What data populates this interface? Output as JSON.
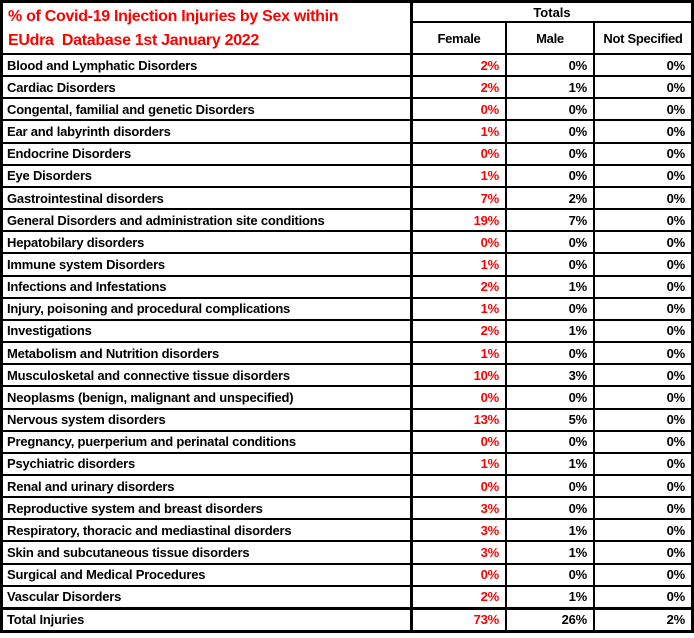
{
  "header": {
    "title_line1": "% of Covid-19 Injection Injuries by Sex within",
    "title_line2": "EUdra  Database 1st January 2022",
    "totals_label": "Totals",
    "columns": [
      "Female",
      "Male",
      "Not Specified"
    ]
  },
  "colors": {
    "title_red": "#FF0000",
    "female_value_red": "#FF0000",
    "border_black": "#000000",
    "background": "#FFFFFF"
  },
  "chart_data": {
    "type": "table",
    "title": "% of Covid-19 Injection Injuries by Sex within EUdra  Database 1st January 2022",
    "column_group_header": "Totals",
    "columns": [
      "Female",
      "Male",
      "Not Specified"
    ],
    "rows": [
      [
        "Blood and Lymphatic Disorders",
        "2%",
        "0%",
        "0%"
      ],
      [
        "Cardiac Disorders",
        "2%",
        "1%",
        "0%"
      ],
      [
        "Congental, familial and genetic Disorders",
        "0%",
        "0%",
        "0%"
      ],
      [
        "Ear and labyrinth disorders",
        "1%",
        "0%",
        "0%"
      ],
      [
        "Endocrine Disorders",
        "0%",
        "0%",
        "0%"
      ],
      [
        "Eye Disorders",
        "1%",
        "0%",
        "0%"
      ],
      [
        "Gastrointestinal disorders",
        "7%",
        "2%",
        "0%"
      ],
      [
        "General Disorders and administration site conditions",
        "19%",
        "7%",
        "0%"
      ],
      [
        "Hepatobilary disorders",
        "0%",
        "0%",
        "0%"
      ],
      [
        "Immune system Disorders",
        "1%",
        "0%",
        "0%"
      ],
      [
        "Infections and Infestations",
        "2%",
        "1%",
        "0%"
      ],
      [
        "Injury, poisoning and procedural complications",
        "1%",
        "0%",
        "0%"
      ],
      [
        "Investigations",
        "2%",
        "1%",
        "0%"
      ],
      [
        "Metabolism and Nutrition disorders",
        "1%",
        "0%",
        "0%"
      ],
      [
        "Musculosketal and connective tissue disorders",
        "10%",
        "3%",
        "0%"
      ],
      [
        "Neoplasms (benign, malignant and unspecified)",
        "0%",
        "0%",
        "0%"
      ],
      [
        "Nervous system disorders",
        "13%",
        "5%",
        "0%"
      ],
      [
        "Pregnancy, puerperium and perinatal conditions",
        "0%",
        "0%",
        "0%"
      ],
      [
        "Psychiatric disorders",
        "1%",
        "1%",
        "0%"
      ],
      [
        "Renal and urinary disorders",
        "0%",
        "0%",
        "0%"
      ],
      [
        "Reproductive system and breast disorders",
        "3%",
        "0%",
        "0%"
      ],
      [
        "Respiratory, thoracic and mediastinal disorders",
        "3%",
        "1%",
        "0%"
      ],
      [
        "Skin and subcutaneous tissue disorders",
        "3%",
        "1%",
        "0%"
      ],
      [
        "Surgical and Medical Procedures",
        "0%",
        "0%",
        "0%"
      ],
      [
        "Vascular Disorders",
        "2%",
        "1%",
        "0%"
      ]
    ],
    "total_row": [
      "Total Injuries",
      "73%",
      "26%",
      "2%"
    ]
  }
}
